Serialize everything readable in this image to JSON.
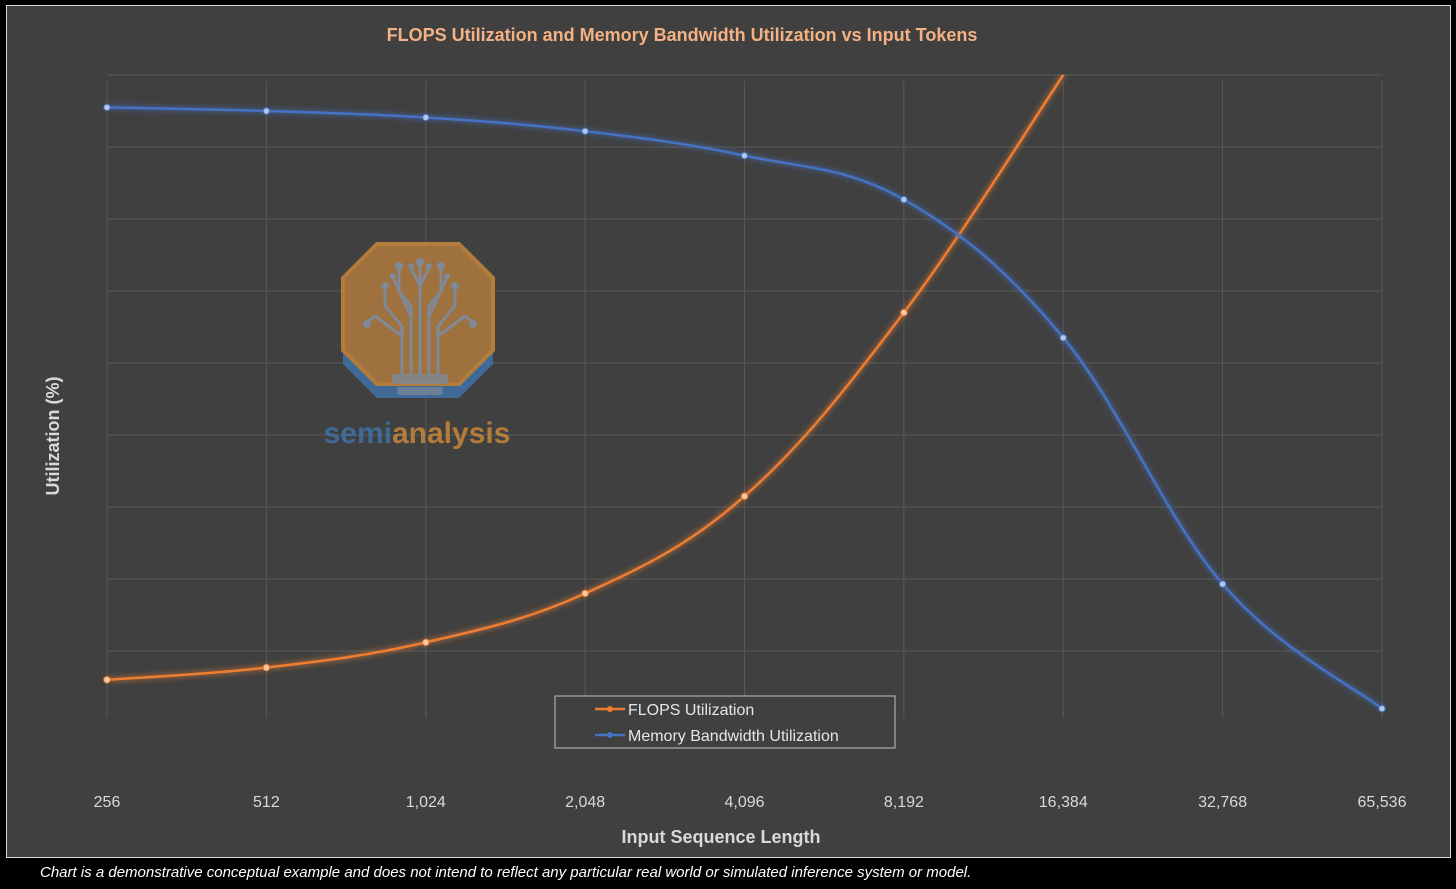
{
  "chart_data": {
    "type": "line",
    "title": "FLOPS Utilization and Memory Bandwidth Utilization vs Input Tokens",
    "xlabel": "Input Sequence Length",
    "ylabel": "Utilization (%)",
    "categories": [
      "256",
      "512",
      "1,024",
      "2,048",
      "4,096",
      "8,192",
      "16,384",
      "32,768",
      "65,536"
    ],
    "x_scale": "log2",
    "ylim": [
      0,
      9
    ],
    "grid": true,
    "y_tick_labels_shown": false,
    "legend_position": "bottom-center",
    "series": [
      {
        "name": "FLOPS Utilization",
        "color": "#ed7d31",
        "values": [
          0.6,
          0.77,
          1.12,
          1.8,
          3.15,
          5.7,
          9.0,
          null,
          null
        ]
      },
      {
        "name": "Memory Bandwidth Utilization",
        "color": "#4472c4",
        "values": [
          8.55,
          8.5,
          8.41,
          8.22,
          7.88,
          7.27,
          5.35,
          1.93,
          0.2
        ]
      }
    ]
  },
  "watermark": {
    "text_part1": "semi",
    "text_part2": "analysis",
    "icon": "lightbulb-circuit-tree-logo"
  },
  "footnote": "Chart is a demonstrative conceptual example and does not intend to reflect any particular real world or simulated inference system or model.",
  "colors": {
    "background": "#404040",
    "gridline": "#595959",
    "title": "#f4b183",
    "text": "#d9d9d9",
    "flops": "#ed7d31",
    "memory": "#4472c4",
    "watermark_orange": "#c9873b",
    "watermark_blue": "#3f72a8"
  }
}
